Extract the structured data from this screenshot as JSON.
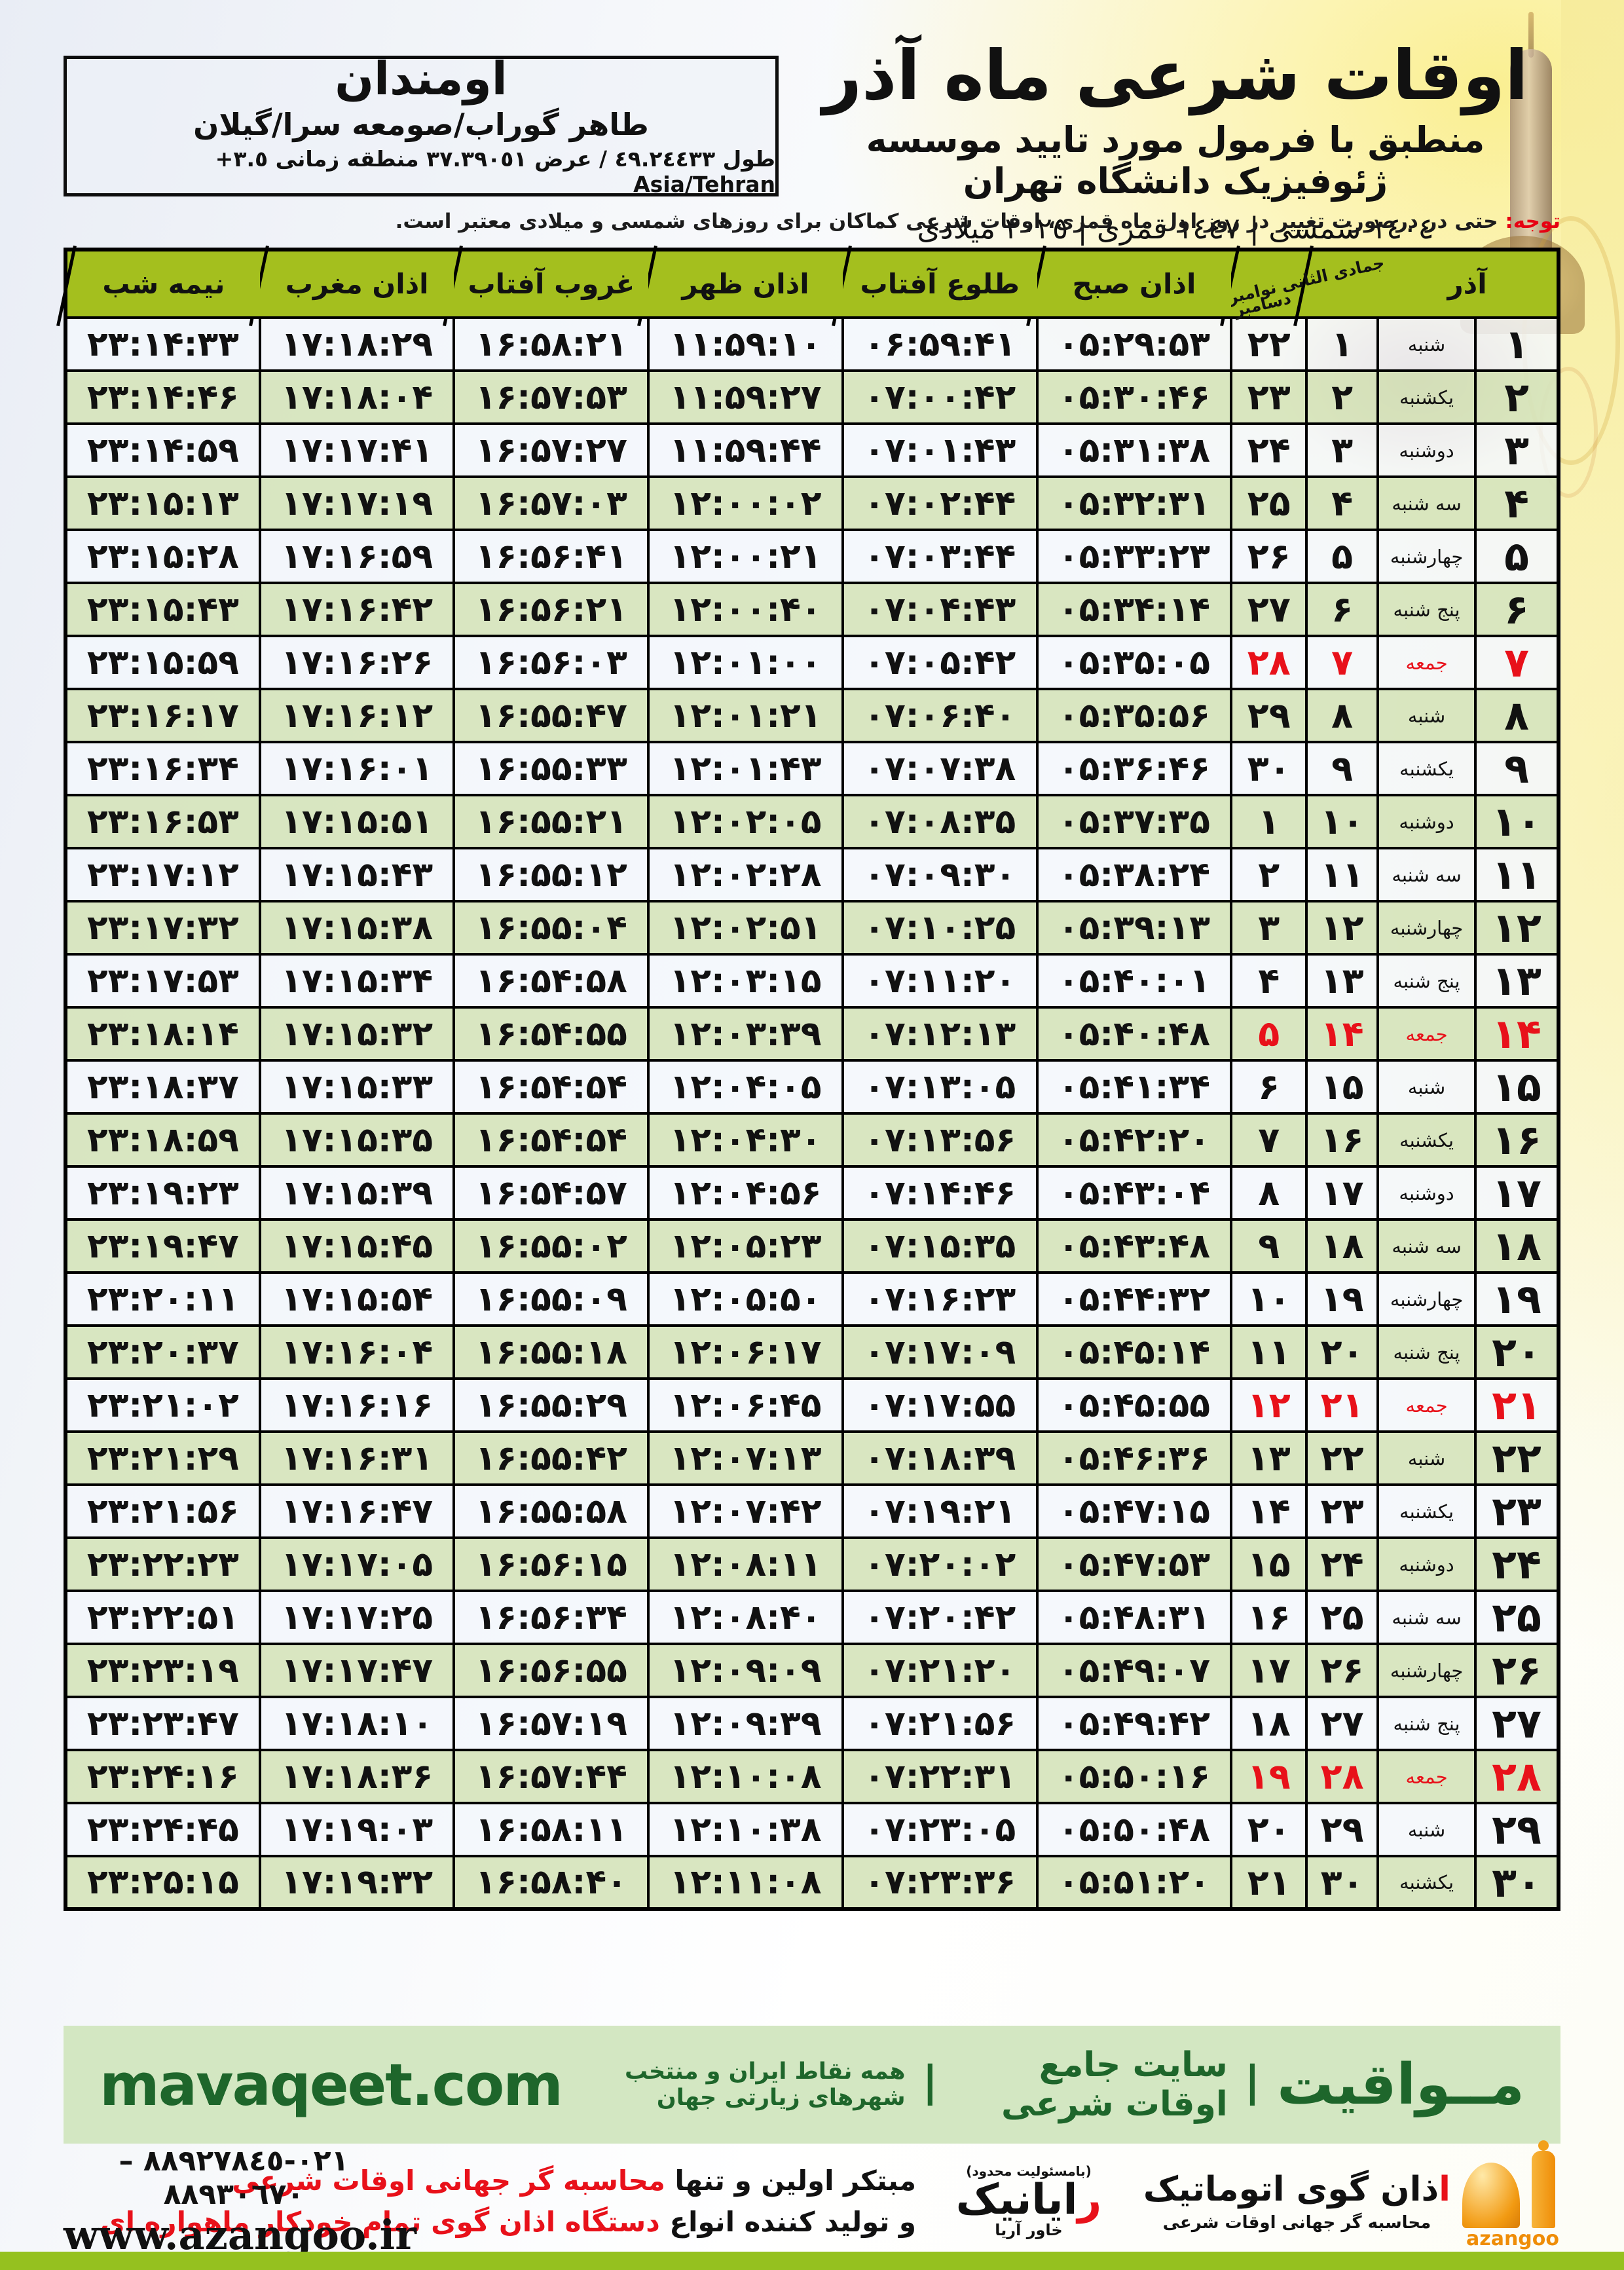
{
  "title_block": {
    "title": "اوقات شرعی ماه آذر",
    "subtitle": "منطبق با فرمول مورد تایید موسسه ژئوفیزیک دانشگاه تهران",
    "dates": "١٤٠٤ شمسی | ١٤٤٧ قمری | ٢٠٢٥ میلادی"
  },
  "location_box": {
    "name": "اومندان",
    "region": "طاهر گوراب/صومعه سرا/گیلان",
    "coords_rtl": "طول ٤٩.٢٤٤٣٣ / عرض ٣٧.٣٩٠٥١ منطقه زمانی",
    "tz_value": "+٣.٥",
    "tz_name": "Asia/Tehran"
  },
  "note": {
    "label": "توجه:",
    "text": "حتی در درصورت تغییر در روز اول ماه قمری، اوقات شرعی کماکان برای روزهای شمسی و میلادی معتبر است."
  },
  "table": {
    "headers": {
      "azar": "آذر",
      "diag_line1": "جمادی الثانی نوامبر",
      "diag_line2": "دسامبر",
      "sobh": "اذان صبح",
      "tolu": "طلوع آفتاب",
      "zohr": "اذان ظهر",
      "ghorub": "غروب آفتاب",
      "maghreb": "اذان مغرب",
      "nimeshab": "نیمه شب"
    },
    "rows": [
      {
        "azar": "۱",
        "weekday": "شنبه",
        "hijri": "۱",
        "greg": "۲۲",
        "sobh": "۰۵:۲۹:۵۳",
        "tolu": "۰۶:۵۹:۴۱",
        "zohr": "۱۱:۵۹:۱۰",
        "ghorub": "۱۶:۵۸:۲۱",
        "maghreb": "۱۷:۱۸:۲۹",
        "nimeshab": "۲۳:۱۴:۳۳",
        "friday": false
      },
      {
        "azar": "۲",
        "weekday": "یکشنبه",
        "hijri": "۲",
        "greg": "۲۳",
        "sobh": "۰۵:۳۰:۴۶",
        "tolu": "۰۷:۰۰:۴۲",
        "zohr": "۱۱:۵۹:۲۷",
        "ghorub": "۱۶:۵۷:۵۳",
        "maghreb": "۱۷:۱۸:۰۴",
        "nimeshab": "۲۳:۱۴:۴۶",
        "friday": false
      },
      {
        "azar": "۳",
        "weekday": "دوشنبه",
        "hijri": "۳",
        "greg": "۲۴",
        "sobh": "۰۵:۳۱:۳۸",
        "tolu": "۰۷:۰۱:۴۳",
        "zohr": "۱۱:۵۹:۴۴",
        "ghorub": "۱۶:۵۷:۲۷",
        "maghreb": "۱۷:۱۷:۴۱",
        "nimeshab": "۲۳:۱۴:۵۹",
        "friday": false
      },
      {
        "azar": "۴",
        "weekday": "سه شنبه",
        "hijri": "۴",
        "greg": "۲۵",
        "sobh": "۰۵:۳۲:۳۱",
        "tolu": "۰۷:۰۲:۴۴",
        "zohr": "۱۲:۰۰:۰۲",
        "ghorub": "۱۶:۵۷:۰۳",
        "maghreb": "۱۷:۱۷:۱۹",
        "nimeshab": "۲۳:۱۵:۱۳",
        "friday": false
      },
      {
        "azar": "۵",
        "weekday": "چهارشنبه",
        "hijri": "۵",
        "greg": "۲۶",
        "sobh": "۰۵:۳۳:۲۳",
        "tolu": "۰۷:۰۳:۴۴",
        "zohr": "۱۲:۰۰:۲۱",
        "ghorub": "۱۶:۵۶:۴۱",
        "maghreb": "۱۷:۱۶:۵۹",
        "nimeshab": "۲۳:۱۵:۲۸",
        "friday": false
      },
      {
        "azar": "۶",
        "weekday": "پنج شنبه",
        "hijri": "۶",
        "greg": "۲۷",
        "sobh": "۰۵:۳۴:۱۴",
        "tolu": "۰۷:۰۴:۴۳",
        "zohr": "۱۲:۰۰:۴۰",
        "ghorub": "۱۶:۵۶:۲۱",
        "maghreb": "۱۷:۱۶:۴۲",
        "nimeshab": "۲۳:۱۵:۴۳",
        "friday": false
      },
      {
        "azar": "۷",
        "weekday": "جمعه",
        "hijri": "۷",
        "greg": "۲۸",
        "sobh": "۰۵:۳۵:۰۵",
        "tolu": "۰۷:۰۵:۴۲",
        "zohr": "۱۲:۰۱:۰۰",
        "ghorub": "۱۶:۵۶:۰۳",
        "maghreb": "۱۷:۱۶:۲۶",
        "nimeshab": "۲۳:۱۵:۵۹",
        "friday": true
      },
      {
        "azar": "۸",
        "weekday": "شنبه",
        "hijri": "۸",
        "greg": "۲۹",
        "sobh": "۰۵:۳۵:۵۶",
        "tolu": "۰۷:۰۶:۴۰",
        "zohr": "۱۲:۰۱:۲۱",
        "ghorub": "۱۶:۵۵:۴۷",
        "maghreb": "۱۷:۱۶:۱۲",
        "nimeshab": "۲۳:۱۶:۱۷",
        "friday": false
      },
      {
        "azar": "۹",
        "weekday": "یکشنبه",
        "hijri": "۹",
        "greg": "۳۰",
        "sobh": "۰۵:۳۶:۴۶",
        "tolu": "۰۷:۰۷:۳۸",
        "zohr": "۱۲:۰۱:۴۳",
        "ghorub": "۱۶:۵۵:۳۳",
        "maghreb": "۱۷:۱۶:۰۱",
        "nimeshab": "۲۳:۱۶:۳۴",
        "friday": false
      },
      {
        "azar": "۱۰",
        "weekday": "دوشنبه",
        "hijri": "۱۰",
        "greg": "۱",
        "sobh": "۰۵:۳۷:۳۵",
        "tolu": "۰۷:۰۸:۳۵",
        "zohr": "۱۲:۰۲:۰۵",
        "ghorub": "۱۶:۵۵:۲۱",
        "maghreb": "۱۷:۱۵:۵۱",
        "nimeshab": "۲۳:۱۶:۵۳",
        "friday": false
      },
      {
        "azar": "۱۱",
        "weekday": "سه شنبه",
        "hijri": "۱۱",
        "greg": "۲",
        "sobh": "۰۵:۳۸:۲۴",
        "tolu": "۰۷:۰۹:۳۰",
        "zohr": "۱۲:۰۲:۲۸",
        "ghorub": "۱۶:۵۵:۱۲",
        "maghreb": "۱۷:۱۵:۴۳",
        "nimeshab": "۲۳:۱۷:۱۲",
        "friday": false
      },
      {
        "azar": "۱۲",
        "weekday": "چهارشنبه",
        "hijri": "۱۲",
        "greg": "۳",
        "sobh": "۰۵:۳۹:۱۳",
        "tolu": "۰۷:۱۰:۲۵",
        "zohr": "۱۲:۰۲:۵۱",
        "ghorub": "۱۶:۵۵:۰۴",
        "maghreb": "۱۷:۱۵:۳۸",
        "nimeshab": "۲۳:۱۷:۳۲",
        "friday": false
      },
      {
        "azar": "۱۳",
        "weekday": "پنج شنبه",
        "hijri": "۱۳",
        "greg": "۴",
        "sobh": "۰۵:۴۰:۰۱",
        "tolu": "۰۷:۱۱:۲۰",
        "zohr": "۱۲:۰۳:۱۵",
        "ghorub": "۱۶:۵۴:۵۸",
        "maghreb": "۱۷:۱۵:۳۴",
        "nimeshab": "۲۳:۱۷:۵۳",
        "friday": false
      },
      {
        "azar": "۱۴",
        "weekday": "جمعه",
        "hijri": "۱۴",
        "greg": "۵",
        "sobh": "۰۵:۴۰:۴۸",
        "tolu": "۰۷:۱۲:۱۳",
        "zohr": "۱۲:۰۳:۳۹",
        "ghorub": "۱۶:۵۴:۵۵",
        "maghreb": "۱۷:۱۵:۳۲",
        "nimeshab": "۲۳:۱۸:۱۴",
        "friday": true
      },
      {
        "azar": "۱۵",
        "weekday": "شنبه",
        "hijri": "۱۵",
        "greg": "۶",
        "sobh": "۰۵:۴۱:۳۴",
        "tolu": "۰۷:۱۳:۰۵",
        "zohr": "۱۲:۰۴:۰۵",
        "ghorub": "۱۶:۵۴:۵۴",
        "maghreb": "۱۷:۱۵:۳۳",
        "nimeshab": "۲۳:۱۸:۳۷",
        "friday": false
      },
      {
        "azar": "۱۶",
        "weekday": "یکشنبه",
        "hijri": "۱۶",
        "greg": "۷",
        "sobh": "۰۵:۴۲:۲۰",
        "tolu": "۰۷:۱۳:۵۶",
        "zohr": "۱۲:۰۴:۳۰",
        "ghorub": "۱۶:۵۴:۵۴",
        "maghreb": "۱۷:۱۵:۳۵",
        "nimeshab": "۲۳:۱۸:۵۹",
        "friday": false
      },
      {
        "azar": "۱۷",
        "weekday": "دوشنبه",
        "hijri": "۱۷",
        "greg": "۸",
        "sobh": "۰۵:۴۳:۰۴",
        "tolu": "۰۷:۱۴:۴۶",
        "zohr": "۱۲:۰۴:۵۶",
        "ghorub": "۱۶:۵۴:۵۷",
        "maghreb": "۱۷:۱۵:۳۹",
        "nimeshab": "۲۳:۱۹:۲۳",
        "friday": false
      },
      {
        "azar": "۱۸",
        "weekday": "سه شنبه",
        "hijri": "۱۸",
        "greg": "۹",
        "sobh": "۰۵:۴۳:۴۸",
        "tolu": "۰۷:۱۵:۳۵",
        "zohr": "۱۲:۰۵:۲۳",
        "ghorub": "۱۶:۵۵:۰۲",
        "maghreb": "۱۷:۱۵:۴۵",
        "nimeshab": "۲۳:۱۹:۴۷",
        "friday": false
      },
      {
        "azar": "۱۹",
        "weekday": "چهارشنبه",
        "hijri": "۱۹",
        "greg": "۱۰",
        "sobh": "۰۵:۴۴:۳۲",
        "tolu": "۰۷:۱۶:۲۳",
        "zohr": "۱۲:۰۵:۵۰",
        "ghorub": "۱۶:۵۵:۰۹",
        "maghreb": "۱۷:۱۵:۵۴",
        "nimeshab": "۲۳:۲۰:۱۱",
        "friday": false
      },
      {
        "azar": "۲۰",
        "weekday": "پنج شنبه",
        "hijri": "۲۰",
        "greg": "۱۱",
        "sobh": "۰۵:۴۵:۱۴",
        "tolu": "۰۷:۱۷:۰۹",
        "zohr": "۱۲:۰۶:۱۷",
        "ghorub": "۱۶:۵۵:۱۸",
        "maghreb": "۱۷:۱۶:۰۴",
        "nimeshab": "۲۳:۲۰:۳۷",
        "friday": false
      },
      {
        "azar": "۲۱",
        "weekday": "جمعه",
        "hijri": "۲۱",
        "greg": "۱۲",
        "sobh": "۰۵:۴۵:۵۵",
        "tolu": "۰۷:۱۷:۵۵",
        "zohr": "۱۲:۰۶:۴۵",
        "ghorub": "۱۶:۵۵:۲۹",
        "maghreb": "۱۷:۱۶:۱۶",
        "nimeshab": "۲۳:۲۱:۰۲",
        "friday": true
      },
      {
        "azar": "۲۲",
        "weekday": "شنبه",
        "hijri": "۲۲",
        "greg": "۱۳",
        "sobh": "۰۵:۴۶:۳۶",
        "tolu": "۰۷:۱۸:۳۹",
        "zohr": "۱۲:۰۷:۱۳",
        "ghorub": "۱۶:۵۵:۴۲",
        "maghreb": "۱۷:۱۶:۳۱",
        "nimeshab": "۲۳:۲۱:۲۹",
        "friday": false
      },
      {
        "azar": "۲۳",
        "weekday": "یکشنبه",
        "hijri": "۲۳",
        "greg": "۱۴",
        "sobh": "۰۵:۴۷:۱۵",
        "tolu": "۰۷:۱۹:۲۱",
        "zohr": "۱۲:۰۷:۴۲",
        "ghorub": "۱۶:۵۵:۵۸",
        "maghreb": "۱۷:۱۶:۴۷",
        "nimeshab": "۲۳:۲۱:۵۶",
        "friday": false
      },
      {
        "azar": "۲۴",
        "weekday": "دوشنبه",
        "hijri": "۲۴",
        "greg": "۱۵",
        "sobh": "۰۵:۴۷:۵۳",
        "tolu": "۰۷:۲۰:۰۲",
        "zohr": "۱۲:۰۸:۱۱",
        "ghorub": "۱۶:۵۶:۱۵",
        "maghreb": "۱۷:۱۷:۰۵",
        "nimeshab": "۲۳:۲۲:۲۳",
        "friday": false
      },
      {
        "azar": "۲۵",
        "weekday": "سه شنبه",
        "hijri": "۲۵",
        "greg": "۱۶",
        "sobh": "۰۵:۴۸:۳۱",
        "tolu": "۰۷:۲۰:۴۲",
        "zohr": "۱۲:۰۸:۴۰",
        "ghorub": "۱۶:۵۶:۳۴",
        "maghreb": "۱۷:۱۷:۲۵",
        "nimeshab": "۲۳:۲۲:۵۱",
        "friday": false
      },
      {
        "azar": "۲۶",
        "weekday": "چهارشنبه",
        "hijri": "۲۶",
        "greg": "۱۷",
        "sobh": "۰۵:۴۹:۰۷",
        "tolu": "۰۷:۲۱:۲۰",
        "zohr": "۱۲:۰۹:۰۹",
        "ghorub": "۱۶:۵۶:۵۵",
        "maghreb": "۱۷:۱۷:۴۷",
        "nimeshab": "۲۳:۲۳:۱۹",
        "friday": false
      },
      {
        "azar": "۲۷",
        "weekday": "پنج شنبه",
        "hijri": "۲۷",
        "greg": "۱۸",
        "sobh": "۰۵:۴۹:۴۲",
        "tolu": "۰۷:۲۱:۵۶",
        "zohr": "۱۲:۰۹:۳۹",
        "ghorub": "۱۶:۵۷:۱۹",
        "maghreb": "۱۷:۱۸:۱۰",
        "nimeshab": "۲۳:۲۳:۴۷",
        "friday": false
      },
      {
        "azar": "۲۸",
        "weekday": "جمعه",
        "hijri": "۲۸",
        "greg": "۱۹",
        "sobh": "۰۵:۵۰:۱۶",
        "tolu": "۰۷:۲۲:۳۱",
        "zohr": "۱۲:۱۰:۰۸",
        "ghorub": "۱۶:۵۷:۴۴",
        "maghreb": "۱۷:۱۸:۳۶",
        "nimeshab": "۲۳:۲۴:۱۶",
        "friday": true
      },
      {
        "azar": "۲۹",
        "weekday": "شنبه",
        "hijri": "۲۹",
        "greg": "۲۰",
        "sobh": "۰۵:۵۰:۴۸",
        "tolu": "۰۷:۲۳:۰۵",
        "zohr": "۱۲:۱۰:۳۸",
        "ghorub": "۱۶:۵۸:۱۱",
        "maghreb": "۱۷:۱۹:۰۳",
        "nimeshab": "۲۳:۲۴:۴۵",
        "friday": false
      },
      {
        "azar": "۳۰",
        "weekday": "یکشنبه",
        "hijri": "۳۰",
        "greg": "۲۱",
        "sobh": "۰۵:۵۱:۲۰",
        "tolu": "۰۷:۲۳:۳۶",
        "zohr": "۱۲:۱۱:۰۸",
        "ghorub": "۱۶:۵۸:۴۰",
        "maghreb": "۱۷:۱۹:۳۲",
        "nimeshab": "۲۳:۲۵:۱۵",
        "friday": false
      }
    ]
  },
  "footer": {
    "brand": "مــواقیت",
    "separator": "|",
    "tagline1": "سایت جامع اوقات شرعی",
    "tagline2": "همه نقاط ایران و منتخب شهرهای زیارتی جهان",
    "url": "mavaqeet.com"
  },
  "bottom": {
    "line1_black": "مبتکر اولین و تنها ",
    "line1_red": "محاسبه گر جهانی اوقات شرعی",
    "line2_black": "و تولید کننده انواع ",
    "line2_red": "دستگاه اذان گوی تمام خودکار ماهواره ای",
    "phone": "٠٢١-٨٨٩٢٧٨٤٥ – ٨٨٩٣٠٦٧٠",
    "website": "www.azangoo.ir",
    "rayanik_note": "(بامسئولیت محدود)",
    "rayanik_initial": "ر",
    "rayanik_rest": "ایانیک",
    "rayanik_sub": "خاور آریا",
    "azangoo_initial": "ا",
    "azangoo_rest": "ذان گوی اتوماتیک",
    "azangoo_sub": "محاسبه گر جهانی اوقات شرعی",
    "azangoo_latin": "azangoo"
  },
  "colors": {
    "header_green": "#a4bf1e",
    "row_green": "#d6e4bc",
    "friday_red": "#e8111a",
    "note_red": "#e60012",
    "footer_bg": "#d3e7c2",
    "footer_text": "#1e662b",
    "bottom_bar_green": "#95c11f",
    "azangoo_orange": "#ef8d07"
  }
}
